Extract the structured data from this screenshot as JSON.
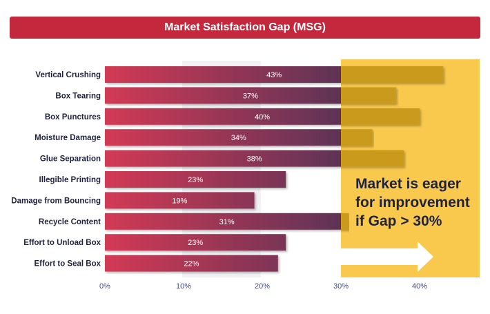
{
  "chart_data": {
    "type": "bar",
    "orientation": "horizontal",
    "title": "Market Satisfaction Gap (MSG)",
    "categories": [
      "Vertical Crushing",
      "Box Tearing",
      "Box Punctures",
      "Moisture Damage",
      "Glue Separation",
      "Illegible Printing",
      "Damage from Bouncing",
      "Recycle Content",
      "Effort to Unload Box",
      "Effort to Seal Box"
    ],
    "values": [
      43,
      37,
      40,
      34,
      38,
      23,
      19,
      31,
      23,
      22
    ],
    "value_labels": [
      "43%",
      "37%",
      "40%",
      "34%",
      "38%",
      "23%",
      "19%",
      "31%",
      "23%",
      "22%"
    ],
    "xlim": [
      0,
      48
    ],
    "xticks": [
      0,
      10,
      20,
      30,
      40
    ],
    "xtick_labels": [
      "0%",
      "10%",
      "20%",
      "30%",
      "40%"
    ],
    "threshold": 30,
    "annotation": [
      "Market is eager",
      "for improvement",
      "if Gap > 30%"
    ],
    "colors": {
      "title_bar": "#c3283c",
      "bar_start": "#d33a54",
      "bar_end": "#5e3356",
      "highlight": "#f9c94d",
      "bar_over_threshold": "#c99a1f",
      "arrow": "#ffffff"
    }
  }
}
